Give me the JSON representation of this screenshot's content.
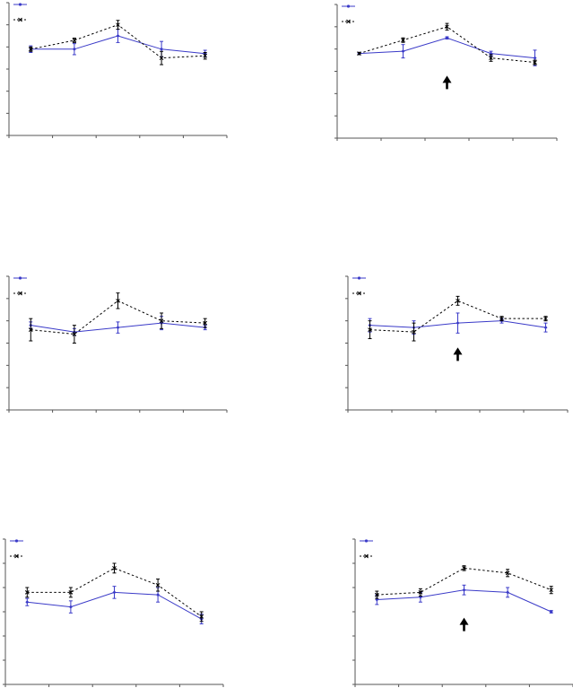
{
  "chart_data": [
    {
      "type": "line",
      "x": [
        1,
        2,
        3,
        4,
        5
      ],
      "ylim": [
        0,
        6
      ],
      "grid": false,
      "legend": "top-left",
      "series": [
        {
          "color": "#3a3ac8",
          "style": "solid",
          "marker": "diamond",
          "values": [
            3.9,
            3.9,
            4.5,
            3.9,
            3.7
          ],
          "errors": [
            0.15,
            0.25,
            0.3,
            0.35,
            0.15
          ]
        },
        {
          "color": "#000000",
          "style": "dotted",
          "marker": "x",
          "values": [
            3.9,
            4.3,
            5.0,
            3.5,
            3.6
          ],
          "errors": [
            0.1,
            0.1,
            0.2,
            0.3,
            0.15
          ]
        }
      ],
      "arrow_at_x": null
    },
    {
      "type": "line",
      "x": [
        1,
        2,
        3,
        4,
        5
      ],
      "ylim": [
        0,
        6
      ],
      "grid": false,
      "legend": "top-left",
      "series": [
        {
          "color": "#3a3ac8",
          "style": "solid",
          "marker": "diamond",
          "values": [
            3.8,
            3.9,
            4.5,
            3.8,
            3.6
          ],
          "errors": [
            0.05,
            0.3,
            0.05,
            0.1,
            0.35
          ]
        },
        {
          "color": "#000000",
          "style": "dotted",
          "marker": "x",
          "values": [
            3.8,
            4.4,
            5.0,
            3.6,
            3.4
          ],
          "errors": [
            0.05,
            0.1,
            0.15,
            0.15,
            0.1
          ]
        }
      ],
      "arrow_at_x": 3
    },
    {
      "type": "line",
      "x": [
        1,
        2,
        3,
        4,
        5
      ],
      "ylim": [
        0,
        6
      ],
      "grid": false,
      "legend": "top-left",
      "series": [
        {
          "color": "#3a3ac8",
          "style": "solid",
          "marker": "diamond",
          "values": [
            3.8,
            3.5,
            3.7,
            3.9,
            3.7
          ],
          "errors": [
            0.15,
            0.15,
            0.25,
            0.3,
            0.1
          ]
        },
        {
          "color": "#000000",
          "style": "dotted",
          "marker": "x",
          "values": [
            3.6,
            3.4,
            4.9,
            4.0,
            3.9
          ],
          "errors": [
            0.5,
            0.4,
            0.35,
            0.35,
            0.2
          ]
        }
      ],
      "arrow_at_x": null
    },
    {
      "type": "line",
      "x": [
        1,
        2,
        3,
        4,
        5
      ],
      "ylim": [
        0,
        6
      ],
      "grid": false,
      "legend": "top-left",
      "series": [
        {
          "color": "#3a3ac8",
          "style": "solid",
          "marker": "diamond",
          "values": [
            3.8,
            3.7,
            3.9,
            4.0,
            3.7
          ],
          "errors": [
            0.3,
            0.3,
            0.45,
            0.1,
            0.2
          ]
        },
        {
          "color": "#000000",
          "style": "dotted",
          "marker": "x",
          "values": [
            3.6,
            3.5,
            4.9,
            4.1,
            4.1
          ],
          "errors": [
            0.4,
            0.4,
            0.2,
            0.1,
            0.1
          ]
        }
      ],
      "arrow_at_x": 3
    },
    {
      "type": "line",
      "x": [
        1,
        2,
        3,
        4,
        5
      ],
      "ylim": [
        0,
        6
      ],
      "grid": false,
      "legend": "top-left",
      "series": [
        {
          "color": "#3a3ac8",
          "style": "solid",
          "marker": "diamond",
          "values": [
            3.4,
            3.2,
            3.8,
            3.7,
            2.7
          ],
          "errors": [
            0.15,
            0.25,
            0.25,
            0.3,
            0.2
          ]
        },
        {
          "color": "#000000",
          "style": "dotted",
          "marker": "x",
          "values": [
            3.8,
            3.8,
            4.8,
            4.1,
            2.8
          ],
          "errors": [
            0.2,
            0.2,
            0.2,
            0.25,
            0.2
          ]
        }
      ],
      "arrow_at_x": null
    },
    {
      "type": "line",
      "x": [
        1,
        2,
        3,
        4,
        5
      ],
      "ylim": [
        0,
        6
      ],
      "grid": false,
      "legend": "top-left",
      "series": [
        {
          "color": "#3a3ac8",
          "style": "solid",
          "marker": "diamond",
          "values": [
            3.5,
            3.6,
            3.9,
            3.8,
            3.0
          ],
          "errors": [
            0.2,
            0.2,
            0.2,
            0.2,
            0.05
          ]
        },
        {
          "color": "#000000",
          "style": "dotted",
          "marker": "x",
          "values": [
            3.7,
            3.8,
            4.8,
            4.6,
            3.9
          ],
          "errors": [
            0.15,
            0.15,
            0.1,
            0.15,
            0.15
          ]
        }
      ],
      "arrow_at_x": 3
    }
  ]
}
